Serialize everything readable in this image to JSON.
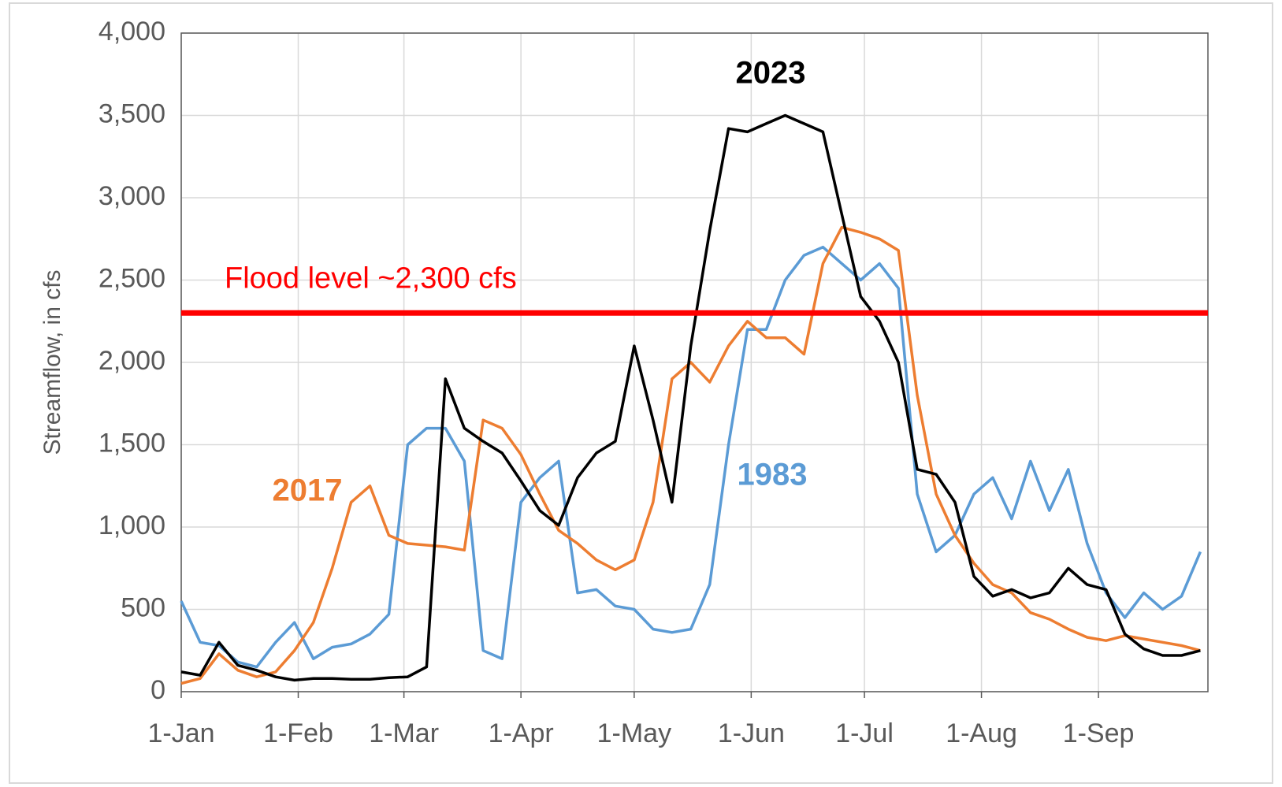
{
  "chart_data": {
    "type": "line",
    "ylabel": "Streamflow, in cfs",
    "x": [
      "1-Jan",
      "6-Jan",
      "11-Jan",
      "16-Jan",
      "21-Jan",
      "26-Jan",
      "31-Jan",
      "5-Feb",
      "10-Feb",
      "15-Feb",
      "20-Feb",
      "25-Feb",
      "2-Mar",
      "7-Mar",
      "12-Mar",
      "17-Mar",
      "22-Mar",
      "27-Mar",
      "1-Apr",
      "6-Apr",
      "11-Apr",
      "16-Apr",
      "21-Apr",
      "26-Apr",
      "1-May",
      "6-May",
      "11-May",
      "16-May",
      "21-May",
      "26-May",
      "31-May",
      "5-Jun",
      "10-Jun",
      "15-Jun",
      "20-Jun",
      "25-Jun",
      "30-Jun",
      "5-Jul",
      "10-Jul",
      "15-Jul",
      "20-Jul",
      "25-Jul",
      "30-Jul",
      "4-Aug",
      "9-Aug",
      "14-Aug",
      "19-Aug",
      "24-Aug",
      "29-Aug",
      "3-Sep",
      "8-Sep",
      "13-Sep",
      "18-Sep",
      "23-Sep",
      "28-Sep"
    ],
    "series": [
      {
        "name": "1983",
        "color": "#5b9bd5",
        "values": [
          550,
          300,
          280,
          180,
          150,
          300,
          420,
          200,
          270,
          290,
          350,
          470,
          1500,
          1600,
          1600,
          1400,
          250,
          200,
          1150,
          1300,
          1400,
          600,
          620,
          520,
          500,
          380,
          360,
          380,
          650,
          1500,
          2200,
          2200,
          2500,
          2650,
          2700,
          2600,
          2500,
          2600,
          2450,
          1200,
          850,
          950,
          1200,
          1300,
          1050,
          1400,
          1100,
          1350,
          900,
          600,
          450,
          600,
          500,
          580,
          850
        ]
      },
      {
        "name": "2017",
        "color": "#ed7d31",
        "values": [
          50,
          80,
          230,
          130,
          90,
          120,
          250,
          420,
          750,
          1150,
          1250,
          950,
          900,
          890,
          880,
          860,
          1650,
          1600,
          1440,
          1200,
          980,
          900,
          800,
          740,
          800,
          1150,
          1900,
          2000,
          1880,
          2100,
          2250,
          2150,
          2150,
          2050,
          2600,
          2820,
          2790,
          2750,
          2680,
          1800,
          1200,
          950,
          780,
          650,
          600,
          480,
          440,
          380,
          330,
          310,
          340,
          320,
          300,
          280,
          250
        ]
      },
      {
        "name": "2023",
        "color": "#000000",
        "values": [
          120,
          100,
          300,
          160,
          130,
          90,
          70,
          80,
          80,
          75,
          75,
          85,
          90,
          150,
          1900,
          1600,
          1520,
          1450,
          1280,
          1100,
          1010,
          1300,
          1450,
          1520,
          2100,
          1650,
          1150,
          2100,
          2800,
          3420,
          3400,
          3450,
          3500,
          3450,
          3400,
          2900,
          2400,
          2250,
          2000,
          1350,
          1320,
          1150,
          700,
          580,
          620,
          570,
          600,
          750,
          650,
          620,
          350,
          260,
          220,
          220,
          250
        ]
      }
    ],
    "annotations": [
      {
        "text": "Flood level ~2,300 cfs",
        "value": 2300,
        "color": "#ff0000"
      }
    ],
    "xlim": [
      "1-Jan",
      "30-Sep"
    ],
    "xticks": [
      "1-Jan",
      "1-Feb",
      "1-Mar",
      "1-Apr",
      "1-May",
      "1-Jun",
      "1-Jul",
      "1-Aug",
      "1-Sep"
    ],
    "ylim": [
      0,
      4000
    ],
    "yticks": [
      0,
      {
        "value": 500,
        "label": "500"
      },
      {
        "value": 1000,
        "label": "1,000"
      },
      {
        "value": 1500,
        "label": "1,500"
      },
      {
        "value": 2000,
        "label": "2,000"
      },
      {
        "value": 2500,
        "label": "2,500"
      },
      {
        "value": 3000,
        "label": "3,000"
      },
      {
        "value": 3500,
        "label": "3,500"
      },
      {
        "value": 4000,
        "label": "4,000"
      }
    ],
    "grid": true
  }
}
